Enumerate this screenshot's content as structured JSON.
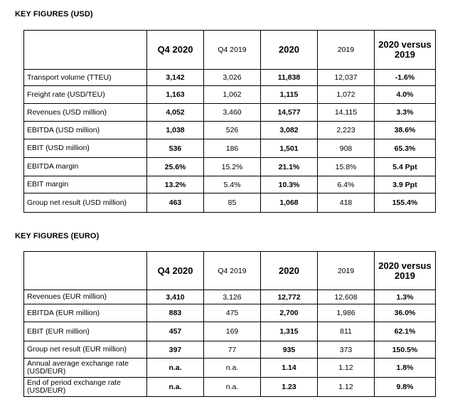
{
  "usd": {
    "title": "KEY FIGURES (USD)",
    "headers": [
      "",
      "Q4 2020",
      "Q4 2019",
      "2020",
      "2019",
      "2020 versus 2019"
    ],
    "rows": [
      {
        "label": "Transport volume (TTEU)",
        "q4_2020": "3,142",
        "q4_2019": "3,026",
        "y2020": "11,838",
        "y2019": "12,037",
        "change": "-1.6%"
      },
      {
        "label": "Freight rate (USD/TEU)",
        "q4_2020": "1,163",
        "q4_2019": "1,062",
        "y2020": "1,115",
        "y2019": "1,072",
        "change": "4.0%"
      },
      {
        "label": "Revenues (USD million)",
        "q4_2020": "4,052",
        "q4_2019": "3,460",
        "y2020": "14,577",
        "y2019": "14,115",
        "change": "3.3%"
      },
      {
        "label": "EBITDA (USD million)",
        "q4_2020": "1,038",
        "q4_2019": "526",
        "y2020": "3,082",
        "y2019": "2,223",
        "change": "38.6%"
      },
      {
        "label": "EBIT (USD million)",
        "q4_2020": "536",
        "q4_2019": "186",
        "y2020": "1,501",
        "y2019": "908",
        "change": "65.3%"
      },
      {
        "label": "EBITDA margin",
        "q4_2020": "25.6%",
        "q4_2019": "15.2%",
        "y2020": "21.1%",
        "y2019": "15.8%",
        "change": "5.4 Ppt"
      },
      {
        "label": "EBIT margin",
        "q4_2020": "13.2%",
        "q4_2019": "5.4%",
        "y2020": "10.3%",
        "y2019": "6.4%",
        "change": "3.9 Ppt"
      },
      {
        "label": "Group net result (USD million)",
        "q4_2020": "463",
        "q4_2019": "85",
        "y2020": "1,068",
        "y2019": "418",
        "change": "155.4%"
      }
    ]
  },
  "euro": {
    "title": "KEY FIGURES (EURO)",
    "headers": [
      "",
      "Q4 2020",
      "Q4 2019",
      "2020",
      "2019",
      "2020 versus 2019"
    ],
    "rows": [
      {
        "label": "Revenues (EUR million)",
        "q4_2020": "3,410",
        "q4_2019": "3,126",
        "y2020": "12,772",
        "y2019": "12,608",
        "change": "1.3%"
      },
      {
        "label": "EBITDA (EUR million)",
        "q4_2020": "883",
        "q4_2019": "475",
        "y2020": "2,700",
        "y2019": "1,986",
        "change": "36.0%"
      },
      {
        "label": "EBIT (EUR million)",
        "q4_2020": "457",
        "q4_2019": "169",
        "y2020": "1,315",
        "y2019": "811",
        "change": "62.1%"
      },
      {
        "label": "Group net result (EUR million)",
        "q4_2020": "397",
        "q4_2019": "77",
        "y2020": "935",
        "y2019": "373",
        "change": "150.5%"
      },
      {
        "label": "Annual average exchange rate (USD/EUR)",
        "q4_2020": "n.a.",
        "q4_2019": "n.a.",
        "y2020": "1.14",
        "y2019": "1.12",
        "change": "1.8%"
      },
      {
        "label": "End of period exchange rate (USD/EUR)",
        "q4_2020": "n.a.",
        "q4_2019": "n.a.",
        "y2020": "1.23",
        "y2019": "1.12",
        "change": "9.8%"
      }
    ]
  }
}
